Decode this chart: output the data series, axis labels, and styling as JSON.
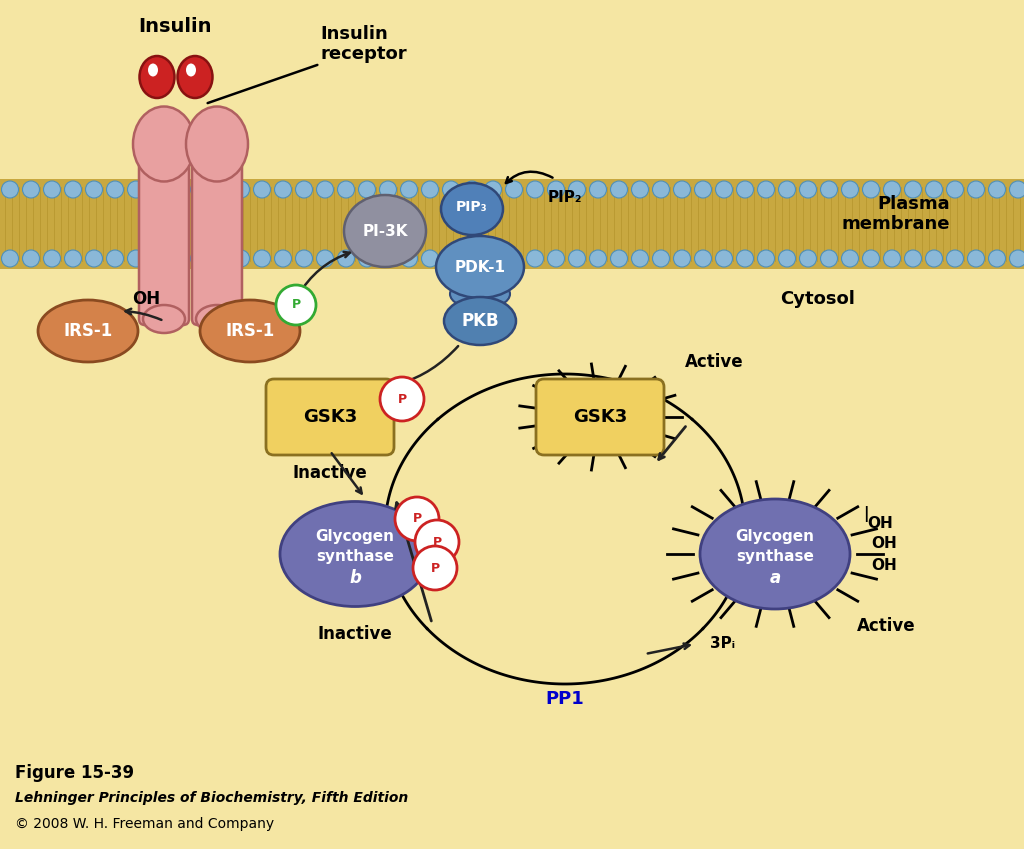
{
  "bg_color": "#f5e6a3",
  "membrane_color": "#b8d4e8",
  "membrane_bead_color": "#8ab8d8",
  "receptor_color": "#e8a0a0",
  "receptor_edge": "#b06060",
  "insulin_color": "#cc2222",
  "irs1_color": "#d4824a",
  "irs1_edge": "#8a4a20",
  "pi3k_color": "#9090a0",
  "pi3k_edge": "#606070",
  "pip_color": "#5080b8",
  "pip_edge": "#304878",
  "pdk1_color": "#6090c0",
  "pkb_color": "#5080b0",
  "gsk3_color": "#f0d060",
  "gsk3_edge": "#8a7020",
  "glycogen_color": "#7070b0",
  "glycogen_edge": "#404080",
  "p_edge_red": "#cc2222",
  "p_edge_green": "#33aa33",
  "arrow_color": "#222222",
  "pp1_color": "#0000cc",
  "cytosol_text": "Cytosol",
  "plasma_text": "Plasma\nmembrane",
  "figure_caption": "Figure 15-39",
  "book_title": "Lehninger Principles of Biochemistry, Fifth Edition",
  "copyright": "© 2008 W. H. Freeman and Company"
}
